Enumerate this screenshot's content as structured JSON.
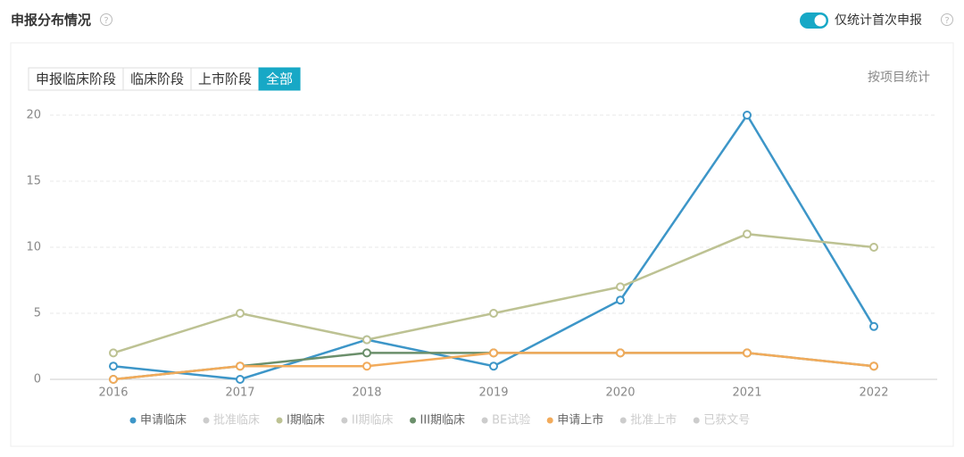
{
  "header": {
    "title": "申报分布情况"
  },
  "toggle": {
    "label": "仅统计首次申报",
    "on": true
  },
  "tabs": {
    "items": [
      "申报临床阶段",
      "临床阶段",
      "上市阶段",
      "全部"
    ],
    "active": 3
  },
  "group_by": "按项目统计",
  "chart_data": {
    "type": "line",
    "categories": [
      "2016",
      "2017",
      "2018",
      "2019",
      "2020",
      "2021",
      "2022"
    ],
    "ylim": [
      0,
      20
    ],
    "yticks": [
      0,
      5,
      10,
      15,
      20
    ],
    "grid": true,
    "series": [
      {
        "name": "申请临床",
        "color": "#3d96c8",
        "values": [
          1,
          0,
          3,
          1,
          6,
          20,
          4
        ]
      },
      {
        "name": "批准临床",
        "color": "#cccccc",
        "hidden": true
      },
      {
        "name": "I期临床",
        "color": "#bdc293",
        "values": [
          2,
          5,
          3,
          5,
          7,
          11,
          10
        ]
      },
      {
        "name": "II期临床",
        "color": "#cccccc",
        "hidden": true
      },
      {
        "name": "III期临床",
        "color": "#6b8f6b",
        "values": [
          0,
          1,
          2,
          2,
          2,
          2,
          1
        ]
      },
      {
        "name": "BE试验",
        "color": "#cccccc",
        "hidden": true
      },
      {
        "name": "申请上市",
        "color": "#f2ab5b",
        "values": [
          0,
          1,
          1,
          2,
          2,
          2,
          1
        ]
      },
      {
        "name": "批准上市",
        "color": "#cccccc",
        "hidden": true
      },
      {
        "name": "已获文号",
        "color": "#cccccc",
        "hidden": true
      }
    ]
  }
}
